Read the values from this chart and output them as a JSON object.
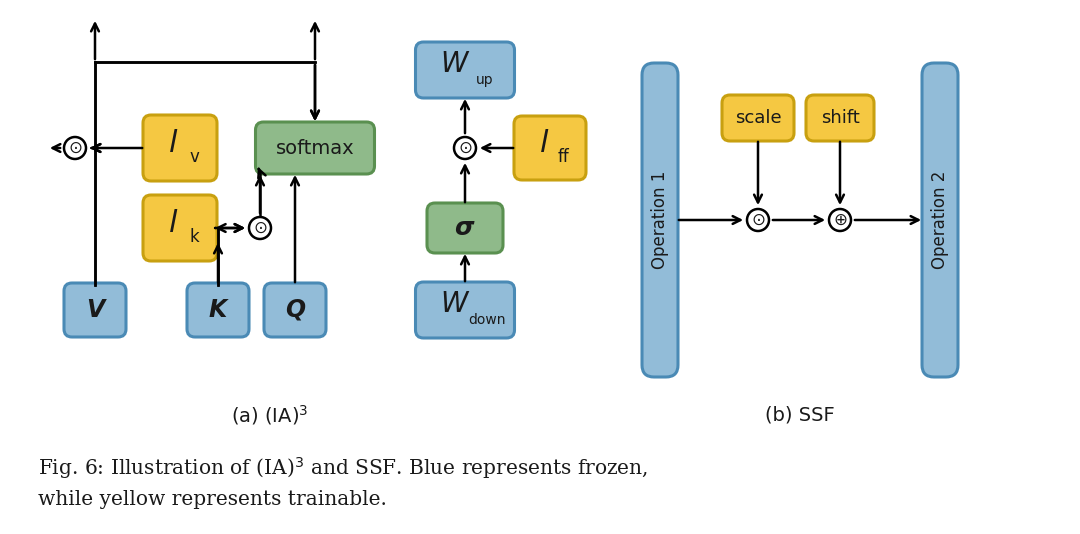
{
  "bg_color": "#ffffff",
  "blue_color": "#92bcd8",
  "blue_edge": "#4a8ab5",
  "yellow_color": "#f5c842",
  "yellow_edge": "#c8a010",
  "green_color": "#8fba8a",
  "green_edge": "#5a9050",
  "text_color": "#1a1a1a",
  "caption_a": "(a) (IA)$^3$",
  "caption_b": "(b) SSF",
  "fig_line1": "Fig. 6: Illustration of (IA)$^3$ and SSF. Blue represents frozen,",
  "fig_line2": "while yellow represents trainable."
}
